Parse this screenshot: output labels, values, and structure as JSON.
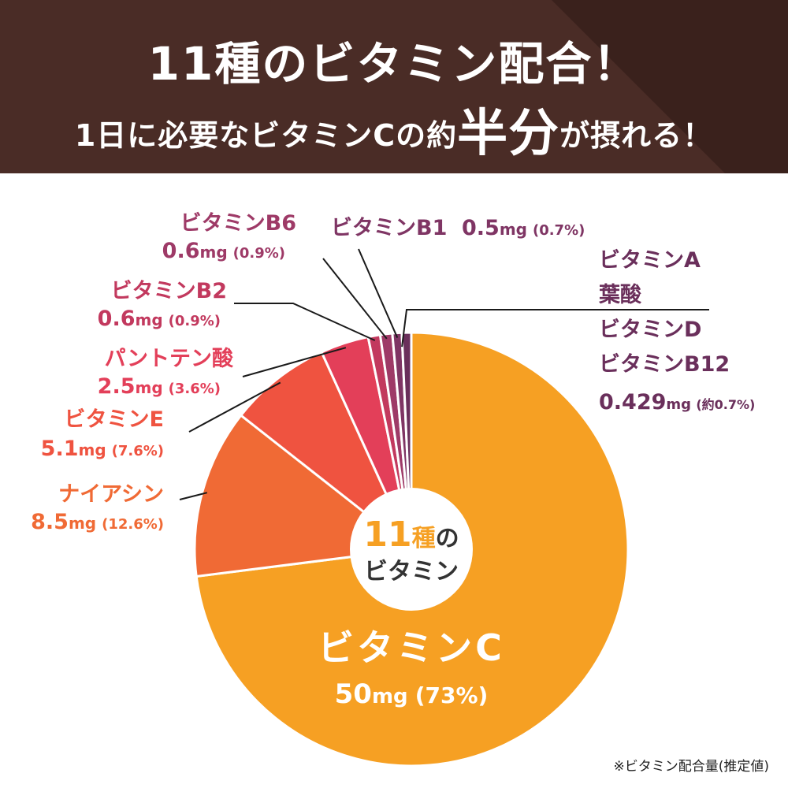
{
  "header": {
    "line1": "11種のビタミン配合！",
    "line2_pre": "1日に必要なビタミンCの約",
    "line2_big": "半分",
    "line2_post": "が摂れる！"
  },
  "center": {
    "count": "11",
    "unit": "種",
    "suffix": "の",
    "line2": "ビタミン"
  },
  "footnote": "※ビタミン配合量(推定値)",
  "colors": {
    "banner": "#4a2c26",
    "vitc": "#f6a023",
    "niacin": "#f06a35",
    "vite": "#ef5340",
    "panto": "#e33f59",
    "b2": "#c2395e",
    "b6": "#9e3a67",
    "b1": "#7f3564",
    "other": "#6a2f5b"
  },
  "chart_data": {
    "type": "pie",
    "slices": [
      {
        "name": "ビタミンC",
        "mg": "50",
        "unit": "mg",
        "pct_label": "(73%)",
        "value": 73,
        "color": "#f6a023"
      },
      {
        "name": "ナイアシン",
        "mg": "8.5",
        "unit": "mg",
        "pct_label": "(12.6%)",
        "value": 12.6,
        "color": "#f06a35"
      },
      {
        "name": "ビタミンE",
        "mg": "5.1",
        "unit": "mg",
        "pct_label": "(7.6%)",
        "value": 7.6,
        "color": "#ef5340"
      },
      {
        "name": "パントテン酸",
        "mg": "2.5",
        "unit": "mg",
        "pct_label": "(3.6%)",
        "value": 3.6,
        "color": "#e33f59"
      },
      {
        "name": "ビタミンB2",
        "mg": "0.6",
        "unit": "mg",
        "pct_label": "(0.9%)",
        "value": 0.9,
        "color": "#c2395e"
      },
      {
        "name": "ビタミンB6",
        "mg": "0.6",
        "unit": "mg",
        "pct_label": "(0.9%)",
        "value": 0.9,
        "color": "#9e3a67"
      },
      {
        "name": "ビタミンB1",
        "mg": "0.5",
        "unit": "mg",
        "pct_label": "(0.7%)",
        "value": 0.7,
        "color": "#7f3564"
      },
      {
        "name_lines": [
          "ビタミンA",
          "葉酸",
          "ビタミンD",
          "ビタミンB12"
        ],
        "mg": "0.429",
        "unit": "mg",
        "pct_label": "(約0.7%)",
        "value": 0.7,
        "color": "#6a2f5b"
      }
    ]
  }
}
